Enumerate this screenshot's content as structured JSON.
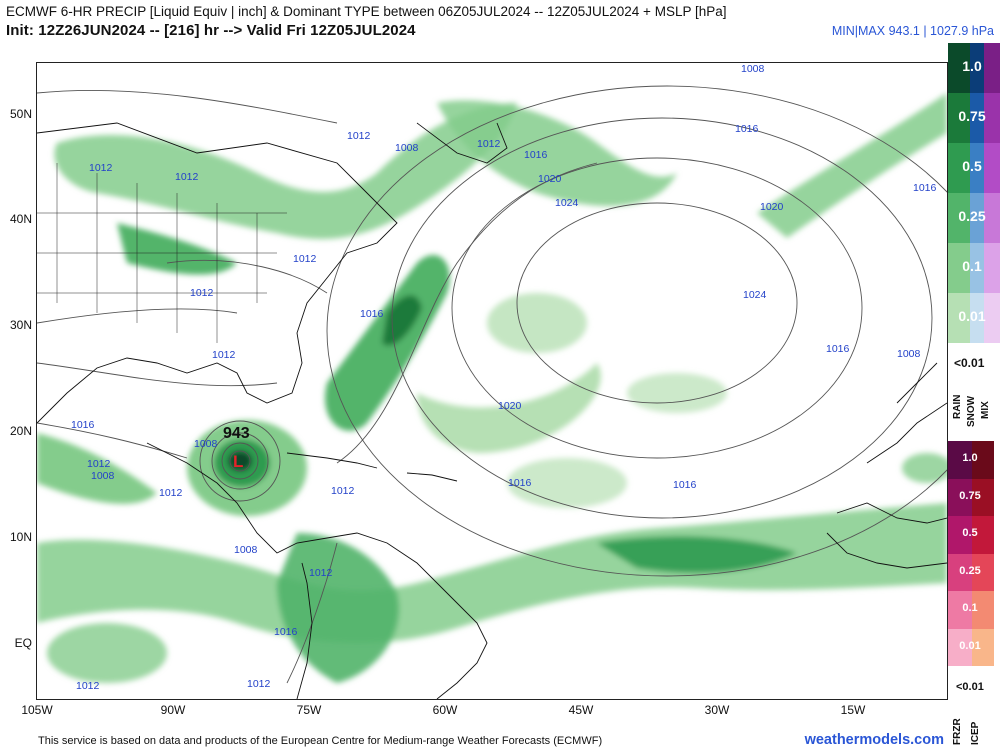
{
  "header": {
    "title": "ECMWF 6-HR PRECIP [Liquid Equiv | inch] & Dominant TYPE between 06Z05JUL2024 -- 12Z05JUL2024 + MSLP [hPa]",
    "subtitle": "Init: 12Z26JUN2024 -- [216] hr --> Valid Fri 12Z05JUL2024",
    "minmax": "MIN|MAX 943.1 | 1027.9 hPa"
  },
  "axes": {
    "lat_labels": [
      "50N",
      "40N",
      "30N",
      "20N",
      "10N",
      "EQ"
    ],
    "lon_labels": [
      "105W",
      "90W",
      "75W",
      "60W",
      "45W",
      "30W",
      "15W"
    ]
  },
  "low_center": {
    "symbol": "L",
    "pressure": "943"
  },
  "isobar_labels": [
    "1008",
    "1016",
    "1012",
    "1008",
    "1012",
    "1016",
    "1020",
    "1024",
    "1020",
    "1016",
    "1012",
    "1012",
    "1012",
    "1012",
    "1016",
    "1024",
    "1020",
    "1012",
    "1016",
    "1008",
    "1016",
    "1008",
    "1012",
    "1008",
    "1012",
    "1016",
    "1016",
    "1012",
    "1008",
    "1012",
    "1016",
    "1012",
    "1012"
  ],
  "legend": {
    "rain_snow_mix": [
      "1.0",
      "0.75",
      "0.5",
      "0.25",
      "0.1",
      "0.01"
    ],
    "rain_snow_mix_below": "<0.01",
    "type_labels_top": [
      "RAIN",
      "SNOW",
      "MIX"
    ],
    "frzr_icep": [
      "1.0",
      "0.75",
      "0.5",
      "0.25",
      "0.1",
      "0.01"
    ],
    "frzr_icep_below": "<0.01",
    "type_labels_bottom": [
      "FRZR",
      "ICEP"
    ],
    "colors": {
      "rain": [
        "#0b4a2a",
        "#1b7a3a",
        "#2f9b50",
        "#52b46a",
        "#84cc8c",
        "#b6e0b4"
      ],
      "snow": [
        "#0b3d78",
        "#1b5aa8",
        "#3a7fc4",
        "#6aa2d6",
        "#98c2e4",
        "#c6def0"
      ],
      "mix": [
        "#7a1f86",
        "#9a33aa",
        "#b24cc6",
        "#c878d8",
        "#dca2e8",
        "#ecccf2"
      ],
      "frzr": [
        "#5a0a46",
        "#8a0f5a",
        "#b0176a",
        "#d8407e",
        "#ee7aa4",
        "#f7aec8"
      ],
      "icep": [
        "#6a0a1a",
        "#9a0f24",
        "#c2183a",
        "#e44658",
        "#f38a72",
        "#f9b68a"
      ]
    }
  },
  "footer": {
    "note": "This service is based on data and products of the European Centre for Medium-range Weather Forecasts (ECMWF)",
    "brand": "weathermodels.com"
  }
}
